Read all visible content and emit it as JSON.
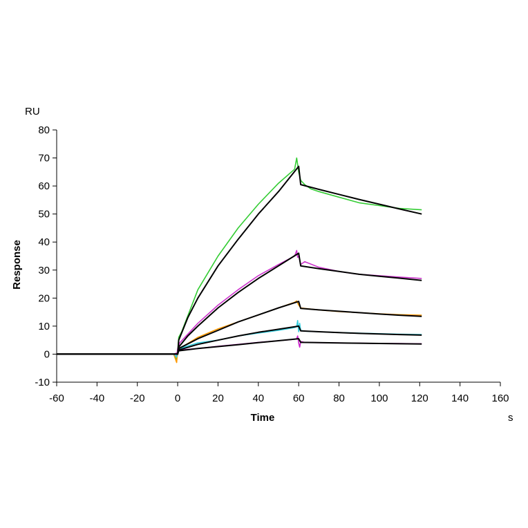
{
  "chart_data": {
    "type": "line",
    "title": "",
    "xlabel": "Time",
    "ylabel": "Response",
    "xunit": "s",
    "yunit": "RU",
    "xlim": [
      -60,
      160
    ],
    "ylim": [
      -10,
      80
    ],
    "xticks": [
      -60,
      -40,
      -20,
      0,
      20,
      40,
      60,
      80,
      100,
      120,
      140,
      160
    ],
    "yticks": [
      -10,
      0,
      10,
      20,
      30,
      40,
      50,
      60,
      70,
      80
    ],
    "grid": false,
    "legend": "none",
    "series": [
      {
        "color": "#33cc33",
        "x": [
          -60,
          -40,
          -20,
          -2,
          -0.5,
          0,
          0.5,
          2,
          10,
          20,
          30,
          40,
          50,
          58,
          59,
          60,
          61,
          63,
          66,
          70,
          80,
          90,
          100,
          110,
          121
        ],
        "y": [
          0,
          0,
          0,
          0,
          -2,
          1,
          6,
          8,
          23,
          35,
          45,
          53.5,
          61,
          66,
          70,
          65,
          62,
          60.5,
          59,
          58,
          56,
          54,
          53,
          52,
          51.5
        ]
      },
      {
        "color": "#cc33cc",
        "x": [
          -60,
          -20,
          -2,
          -0.5,
          0,
          1,
          10,
          20,
          30,
          40,
          50,
          58,
          59,
          59.5,
          60,
          61,
          63,
          70,
          80,
          90,
          100,
          110,
          121
        ],
        "y": [
          0,
          0,
          0,
          -1,
          2,
          4,
          11,
          17.5,
          23,
          28,
          32,
          35,
          37,
          34.5,
          35,
          32,
          33,
          31,
          29.5,
          28.5,
          28,
          27.5,
          27
        ]
      },
      {
        "color": "#ff9900",
        "x": [
          -60,
          -20,
          -2,
          -0.5,
          0,
          1,
          10,
          20,
          30,
          40,
          50,
          58,
          59,
          60,
          61,
          63,
          70,
          80,
          90,
          100,
          110,
          121
        ],
        "y": [
          0,
          0,
          0,
          -3,
          1,
          2,
          6,
          9,
          11.5,
          14,
          16.5,
          18.5,
          19,
          17.5,
          16.5,
          16.3,
          15.8,
          15.2,
          14.8,
          14.4,
          14.1,
          13.9
        ]
      },
      {
        "color": "#33ccdd",
        "x": [
          -60,
          -20,
          -2,
          -0.5,
          0,
          1,
          10,
          20,
          30,
          40,
          50,
          58,
          59,
          59.5,
          60,
          60.5,
          61,
          63,
          70,
          80,
          90,
          100,
          110,
          121
        ],
        "y": [
          0,
          0,
          0,
          -1,
          1,
          2,
          4,
          5,
          6.5,
          7.5,
          8.5,
          9.5,
          9.8,
          12,
          8,
          11,
          8.5,
          8.2,
          8,
          7.7,
          7.5,
          7.3,
          7.1,
          7
        ]
      },
      {
        "color": "#cc22cc",
        "x": [
          -60,
          -20,
          -2,
          0,
          1,
          10,
          20,
          30,
          40,
          50,
          58,
          59,
          59.5,
          60,
          60.5,
          61,
          63,
          70,
          80,
          90,
          100,
          110,
          121
        ],
        "y": [
          0,
          0,
          0,
          0.5,
          1.5,
          2,
          2.8,
          3.5,
          4.2,
          4.8,
          5.3,
          5.5,
          6.5,
          4,
          2.5,
          4.5,
          4.2,
          4.1,
          4,
          3.9,
          3.8,
          3.8,
          3.7
        ]
      },
      {
        "color": "#000000",
        "x": [
          -60,
          -20,
          0,
          0.5,
          5,
          10,
          20,
          30,
          40,
          50,
          60,
          61,
          70,
          80,
          90,
          100,
          110,
          121
        ],
        "y": [
          0,
          0,
          0,
          5,
          13,
          20,
          31.5,
          41,
          50,
          58,
          67,
          60.5,
          58.8,
          57,
          55.2,
          53.5,
          51.8,
          50
        ]
      },
      {
        "color": "#000000",
        "x": [
          -60,
          -20,
          0,
          0.5,
          5,
          10,
          20,
          30,
          40,
          50,
          60,
          61,
          70,
          80,
          90,
          100,
          110,
          121
        ],
        "y": [
          0,
          0,
          0,
          2.5,
          6.5,
          10,
          16.5,
          22,
          27,
          31.5,
          36,
          31.5,
          30.5,
          29.5,
          28.5,
          27.8,
          27.1,
          26.3
        ]
      },
      {
        "color": "#000000",
        "x": [
          -60,
          -20,
          0,
          0.5,
          10,
          20,
          30,
          40,
          50,
          60,
          61,
          70,
          80,
          90,
          100,
          110,
          121
        ],
        "y": [
          0,
          0,
          0,
          2,
          5.5,
          8.5,
          11.5,
          14,
          16.5,
          18.8,
          16.3,
          15.8,
          15.3,
          14.8,
          14.3,
          13.9,
          13.5
        ]
      },
      {
        "color": "#000000",
        "x": [
          -60,
          -20,
          0,
          0.5,
          10,
          20,
          30,
          40,
          50,
          60,
          61,
          70,
          80,
          90,
          100,
          110,
          121
        ],
        "y": [
          0,
          0,
          0,
          1.5,
          3.5,
          5,
          6.5,
          7.8,
          8.9,
          10,
          8.3,
          8,
          7.7,
          7.4,
          7.2,
          7,
          6.8
        ]
      },
      {
        "color": "#000000",
        "x": [
          -60,
          -20,
          0,
          0.5,
          10,
          20,
          30,
          40,
          50,
          60,
          61,
          70,
          80,
          90,
          100,
          110,
          121
        ],
        "y": [
          0,
          0,
          0,
          1.2,
          2,
          2.7,
          3.4,
          4.1,
          4.8,
          5.5,
          4.2,
          4.1,
          4,
          3.9,
          3.8,
          3.7,
          3.6
        ]
      }
    ]
  }
}
